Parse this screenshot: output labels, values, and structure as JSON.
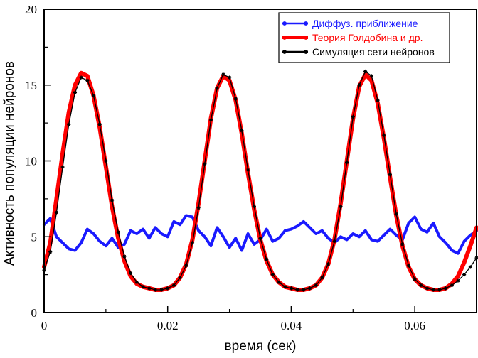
{
  "chart_data": {
    "type": "line",
    "title": "",
    "xlabel": "время (сек)",
    "ylabel": "Активность популяции нейронов",
    "xlim": [
      0,
      0.07
    ],
    "ylim": [
      0,
      20
    ],
    "x_ticks": [
      0,
      0.02,
      0.04,
      0.06
    ],
    "x_tick_labels": [
      "0",
      "0.02",
      "0.04",
      "0.06"
    ],
    "y_ticks": [
      0,
      5,
      10,
      15,
      20
    ],
    "y_tick_labels": [
      "0",
      "5",
      "10",
      "15",
      "20"
    ],
    "grid": false,
    "legend_position": "top-right",
    "series": [
      {
        "name": "Диффуз. приближение",
        "color": "#1a1aff",
        "x": [
          0,
          0.001,
          0.002,
          0.003,
          0.004,
          0.005,
          0.006,
          0.007,
          0.008,
          0.009,
          0.01,
          0.011,
          0.012,
          0.013,
          0.014,
          0.015,
          0.016,
          0.017,
          0.018,
          0.019,
          0.02,
          0.021,
          0.022,
          0.023,
          0.024,
          0.025,
          0.026,
          0.027,
          0.028,
          0.029,
          0.03,
          0.031,
          0.032,
          0.033,
          0.034,
          0.035,
          0.036,
          0.037,
          0.038,
          0.039,
          0.04,
          0.041,
          0.042,
          0.043,
          0.044,
          0.045,
          0.046,
          0.047,
          0.048,
          0.049,
          0.05,
          0.051,
          0.052,
          0.053,
          0.054,
          0.055,
          0.056,
          0.057,
          0.058,
          0.059,
          0.06,
          0.061,
          0.062,
          0.063,
          0.064,
          0.065,
          0.066,
          0.067,
          0.068,
          0.069,
          0.07
        ],
        "y": [
          5.8,
          6.2,
          5.0,
          4.6,
          4.2,
          4.1,
          4.6,
          5.5,
          5.2,
          4.7,
          4.4,
          4.9,
          4.3,
          4.5,
          5.4,
          5.2,
          5.5,
          4.9,
          5.6,
          5.2,
          5.0,
          6.0,
          5.8,
          6.4,
          6.3,
          5.4,
          5.0,
          4.4,
          5.6,
          5.0,
          4.3,
          4.9,
          4.1,
          5.2,
          4.5,
          4.8,
          5.5,
          4.7,
          4.9,
          5.4,
          5.5,
          5.7,
          6.0,
          5.6,
          5.2,
          5.4,
          4.9,
          4.6,
          5.0,
          4.8,
          5.2,
          5.0,
          5.4,
          4.8,
          4.7,
          5.1,
          5.5,
          5.1,
          4.8,
          5.9,
          6.3,
          5.5,
          5.3,
          5.9,
          5.0,
          4.6,
          4.1,
          3.9,
          4.7,
          5.1,
          5.4
        ]
      },
      {
        "name": "Теория Голдобина и др.",
        "color": "#ff0000",
        "x": [
          0,
          0.001,
          0.002,
          0.003,
          0.004,
          0.005,
          0.006,
          0.007,
          0.008,
          0.009,
          0.01,
          0.011,
          0.012,
          0.013,
          0.014,
          0.015,
          0.016,
          0.017,
          0.018,
          0.019,
          0.02,
          0.021,
          0.022,
          0.023,
          0.024,
          0.025,
          0.026,
          0.027,
          0.028,
          0.029,
          0.03,
          0.031,
          0.032,
          0.033,
          0.034,
          0.035,
          0.036,
          0.037,
          0.038,
          0.039,
          0.04,
          0.041,
          0.042,
          0.043,
          0.044,
          0.045,
          0.046,
          0.047,
          0.048,
          0.049,
          0.05,
          0.051,
          0.052,
          0.053,
          0.054,
          0.055,
          0.056,
          0.057,
          0.058,
          0.059,
          0.06,
          0.061,
          0.062,
          0.063,
          0.064,
          0.065,
          0.066,
          0.067,
          0.068,
          0.069,
          0.07
        ],
        "y": [
          3.0,
          4.6,
          7.5,
          10.5,
          13.2,
          15.0,
          15.8,
          15.6,
          14.3,
          12.2,
          9.6,
          7.0,
          4.9,
          3.4,
          2.4,
          1.9,
          1.7,
          1.6,
          1.5,
          1.5,
          1.6,
          1.8,
          2.3,
          3.2,
          4.8,
          7.2,
          10.0,
          12.8,
          14.8,
          15.6,
          15.3,
          14.0,
          11.8,
          9.2,
          6.8,
          4.8,
          3.4,
          2.5,
          2.0,
          1.7,
          1.6,
          1.5,
          1.5,
          1.6,
          1.8,
          2.3,
          3.2,
          4.8,
          7.2,
          10.0,
          12.8,
          14.9,
          15.7,
          15.3,
          13.8,
          11.5,
          8.9,
          6.4,
          4.4,
          3.0,
          2.2,
          1.8,
          1.6,
          1.5,
          1.5,
          1.6,
          1.9,
          2.4,
          3.3,
          4.4,
          5.6
        ]
      },
      {
        "name": "Симуляция сети нейронов",
        "color": "#000000",
        "x": [
          0,
          0.001,
          0.002,
          0.003,
          0.004,
          0.005,
          0.006,
          0.007,
          0.008,
          0.009,
          0.01,
          0.011,
          0.012,
          0.013,
          0.014,
          0.015,
          0.016,
          0.017,
          0.018,
          0.019,
          0.02,
          0.021,
          0.022,
          0.023,
          0.024,
          0.025,
          0.026,
          0.027,
          0.028,
          0.029,
          0.03,
          0.031,
          0.032,
          0.033,
          0.034,
          0.035,
          0.036,
          0.037,
          0.038,
          0.039,
          0.04,
          0.041,
          0.042,
          0.043,
          0.044,
          0.045,
          0.046,
          0.047,
          0.048,
          0.049,
          0.05,
          0.051,
          0.052,
          0.053,
          0.054,
          0.055,
          0.056,
          0.057,
          0.058,
          0.059,
          0.06,
          0.061,
          0.062,
          0.063,
          0.064,
          0.065,
          0.066,
          0.067,
          0.068,
          0.069,
          0.07
        ],
        "y": [
          2.8,
          4.0,
          6.6,
          9.6,
          12.4,
          14.5,
          15.5,
          15.3,
          14.3,
          12.4,
          10.0,
          7.4,
          5.3,
          3.7,
          2.6,
          2.0,
          1.7,
          1.6,
          1.5,
          1.5,
          1.6,
          1.8,
          2.3,
          3.1,
          4.6,
          6.9,
          9.8,
          12.7,
          14.8,
          15.7,
          15.5,
          14.1,
          12.0,
          9.4,
          7.0,
          4.9,
          3.5,
          2.5,
          2.0,
          1.7,
          1.6,
          1.5,
          1.5,
          1.6,
          1.8,
          2.3,
          3.2,
          4.7,
          7.0,
          9.9,
          12.9,
          15.0,
          15.9,
          15.6,
          14.0,
          11.7,
          9.1,
          6.5,
          4.5,
          3.1,
          2.2,
          1.8,
          1.6,
          1.5,
          1.5,
          1.6,
          1.8,
          2.1,
          2.5,
          3.0,
          3.6
        ]
      }
    ]
  }
}
